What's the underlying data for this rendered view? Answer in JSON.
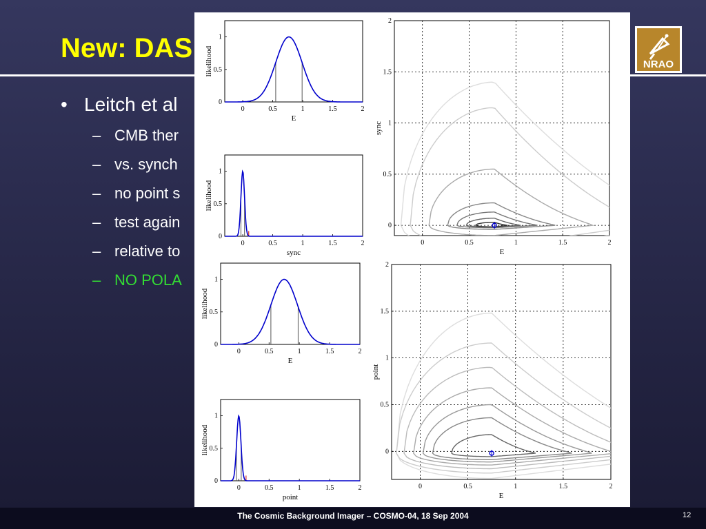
{
  "slide": {
    "title": "New: DAS",
    "bullet": {
      "marker": "•",
      "text": "Leitch et al"
    },
    "sub_bullets": [
      {
        "marker": "–",
        "text": "CMB ther",
        "color": "#ffffff"
      },
      {
        "marker": "–",
        "text": "vs. synch",
        "color": "#ffffff"
      },
      {
        "marker": "–",
        "text": "no point s",
        "color": "#ffffff"
      },
      {
        "marker": "–",
        "text": "test again",
        "color": "#ffffff"
      },
      {
        "marker": "–",
        "text": "relative to",
        "color": "#ffffff"
      },
      {
        "marker": "–",
        "text": "NO POLA",
        "color": "#33dd33"
      }
    ],
    "logo": {
      "text": "NRAO",
      "icon": "nrao-telescope-icon"
    },
    "footer": "The Cosmic Background Imager – COSMO-04, 18 Sep 2004",
    "page_number": "12",
    "colors": {
      "title": "#ffff00",
      "background": "#2a2b4d",
      "highlight": "#33dd33"
    }
  },
  "chart_data": [
    {
      "type": "line",
      "xlabel": "E",
      "ylabel": "likelihood",
      "xlim": [
        -0.3,
        2
      ],
      "ylim": [
        0,
        1.25
      ],
      "xticks": [
        0,
        0.5,
        1,
        1.5,
        2
      ],
      "yticks": [
        0,
        0.5,
        1
      ],
      "xtick_labels": [
        "0",
        "0.5",
        "1",
        "1.5",
        "2"
      ],
      "ytick_labels": [
        "0",
        "0.5",
        "1"
      ],
      "peak": 0.77,
      "width": 0.22,
      "bounds": [
        0.55,
        0.99
      ],
      "upper_limit": null,
      "line_color": "#0000cc"
    },
    {
      "type": "line",
      "xlabel": "sync",
      "ylabel": "likelihood",
      "xlim": [
        -0.3,
        2
      ],
      "ylim": [
        0,
        1.25
      ],
      "xticks": [
        0,
        0.5,
        1,
        1.5,
        2
      ],
      "yticks": [
        0,
        0.5,
        1
      ],
      "xtick_labels": [
        "0",
        "0.5",
        "1",
        "1.5",
        "2"
      ],
      "ytick_labels": [
        "0",
        "0.5",
        "1"
      ],
      "peak": 0.0,
      "width": 0.03,
      "bounds": [
        -0.03,
        0.03
      ],
      "upper_limit": 0.1,
      "line_color": "#0000cc"
    },
    {
      "type": "line",
      "xlabel": "E",
      "ylabel": "likelihood",
      "xlim": [
        -0.3,
        2
      ],
      "ylim": [
        0,
        1.25
      ],
      "xticks": [
        0,
        0.5,
        1,
        1.5,
        2
      ],
      "yticks": [
        0,
        0.5,
        1
      ],
      "xtick_labels": [
        "0",
        "0.5",
        "1",
        "1.5",
        "2"
      ],
      "ytick_labels": [
        "0",
        "0.5",
        "1"
      ],
      "peak": 0.75,
      "width": 0.22,
      "bounds": [
        0.53,
        0.98
      ],
      "upper_limit": null,
      "line_color": "#0000cc"
    },
    {
      "type": "line",
      "xlabel": "point",
      "ylabel": "likelihood",
      "xlim": [
        -0.3,
        2
      ],
      "ylim": [
        0,
        1.25
      ],
      "xticks": [
        0,
        0.5,
        1,
        1.5,
        2
      ],
      "yticks": [
        0,
        0.5,
        1
      ],
      "xtick_labels": [
        "0",
        "0.5",
        "1",
        "1.5",
        "2"
      ],
      "ytick_labels": [
        "0",
        "0.5",
        "1"
      ],
      "peak": 0.0,
      "width": 0.035,
      "bounds": [
        -0.04,
        0.04
      ],
      "upper_limit": 0.12,
      "line_color": "#0000cc"
    },
    {
      "type": "contour",
      "xlabel": "E",
      "ylabel": "sync",
      "xlim": [
        -0.3,
        2
      ],
      "ylim": [
        -0.1,
        2
      ],
      "xticks": [
        0,
        0.5,
        1,
        1.5,
        2
      ],
      "yticks": [
        0,
        0.5,
        1,
        1.5,
        2
      ],
      "xtick_labels": [
        "0",
        "0.5",
        "1",
        "1.5",
        "2"
      ],
      "ytick_labels": [
        "0",
        "0.5",
        "1",
        "1.5",
        "2"
      ],
      "grid": true,
      "best_fit": [
        0.77,
        0.0
      ],
      "levels": [
        {
          "a": 0.14,
          "tail": 0.04,
          "h": 0.012,
          "color": "#000066"
        },
        {
          "a": 0.2,
          "tail": 0.14,
          "h": 0.03,
          "color": "#333333"
        },
        {
          "a": 0.3,
          "tail": 0.28,
          "h": 0.07,
          "color": "#666666"
        },
        {
          "a": 0.4,
          "tail": 0.46,
          "h": 0.13,
          "color": "#777777"
        },
        {
          "a": 0.5,
          "tail": 0.65,
          "h": 0.22,
          "color": "#888888"
        },
        {
          "a": 0.6,
          "tail": 0.85,
          "h": 0.35,
          "color": "#999999"
        },
        {
          "a": 0.7,
          "tail": 1.05,
          "h": 0.55,
          "color": "#aaaaaa"
        },
        {
          "a": 0.8,
          "tail": 1.3,
          "h": 0.85,
          "color": "#bbbbbb"
        },
        {
          "a": 0.9,
          "tail": 1.6,
          "h": 1.15,
          "color": "#cccccc"
        },
        {
          "a": 1.0,
          "tail": 2.0,
          "h": 1.4,
          "color": "#dddddd"
        }
      ]
    },
    {
      "type": "contour",
      "xlabel": "E",
      "ylabel": "point",
      "xlim": [
        -0.3,
        2
      ],
      "ylim": [
        -0.3,
        2
      ],
      "xticks": [
        0,
        0.5,
        1,
        1.5,
        2
      ],
      "yticks": [
        0,
        0.5,
        1,
        1.5,
        2
      ],
      "xtick_labels": [
        "0",
        "0.5",
        "1",
        "1.5",
        "2"
      ],
      "ytick_labels": [
        "0",
        "0.5",
        "1",
        "1.5",
        "2"
      ],
      "grid": true,
      "best_fit": [
        0.75,
        -0.02
      ],
      "levels": [
        {
          "a": 0.16,
          "tail": 0.06,
          "h": 0.05,
          "color": "#000066"
        },
        {
          "a": 0.22,
          "tail": 0.16,
          "h": 0.09,
          "color": "#333333"
        },
        {
          "a": 0.32,
          "tail": 0.3,
          "h": 0.14,
          "color": "#555555"
        },
        {
          "a": 0.42,
          "tail": 0.46,
          "h": 0.2,
          "color": "#666666"
        },
        {
          "a": 0.52,
          "tail": 0.64,
          "h": 0.28,
          "color": "#777777"
        },
        {
          "a": 0.62,
          "tail": 0.84,
          "h": 0.38,
          "color": "#888888"
        },
        {
          "a": 0.72,
          "tail": 1.05,
          "h": 0.52,
          "color": "#999999"
        },
        {
          "a": 0.82,
          "tail": 1.3,
          "h": 0.7,
          "color": "#aaaaaa"
        },
        {
          "a": 0.92,
          "tail": 1.55,
          "h": 0.92,
          "color": "#bbbbbb"
        },
        {
          "a": 1.0,
          "tail": 1.85,
          "h": 1.18,
          "color": "#cccccc"
        },
        {
          "a": 1.0,
          "tail": 2.2,
          "h": 1.5,
          "color": "#dddddd"
        }
      ]
    }
  ]
}
